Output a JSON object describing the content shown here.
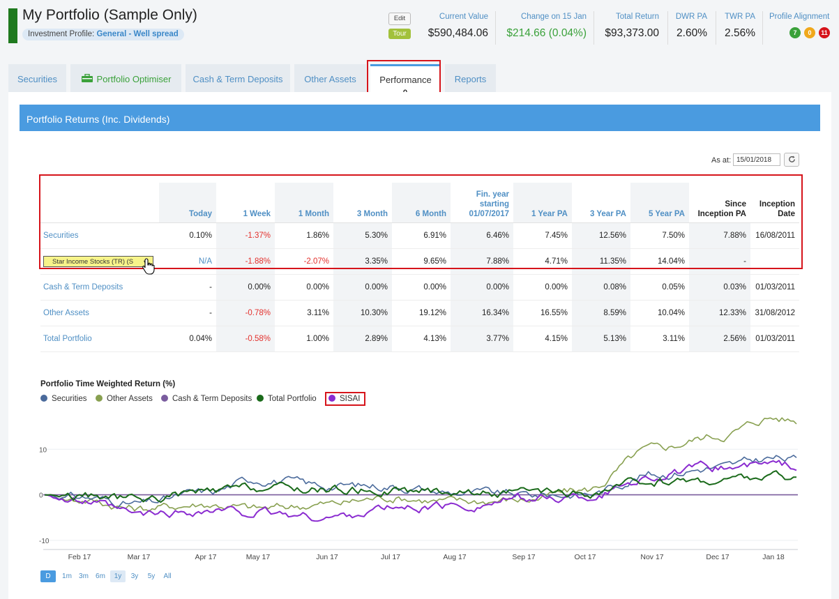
{
  "header": {
    "title": "My Portfolio (Sample Only)",
    "profile_label": "Investment Profile:",
    "profile_value": "General - Well spread",
    "edit_label": "Edit",
    "tour_label": "Tour",
    "kpis": [
      {
        "label": "Current Value",
        "value": "$590,484.06"
      },
      {
        "label": "Change on 15 Jan",
        "value": "$214.66 (0.04%)"
      },
      {
        "label": "Total Return",
        "value": "$93,373.00"
      },
      {
        "label": "DWR PA",
        "value": "2.60%"
      },
      {
        "label": "TWR PA",
        "value": "2.56%"
      }
    ],
    "alignment_label": "Profile Alignment",
    "alignment": [
      {
        "value": "7",
        "color": "#3aa13a"
      },
      {
        "value": "0",
        "color": "#f0a81c"
      },
      {
        "value": "11",
        "color": "#d6141b"
      }
    ]
  },
  "tabs": [
    "Securities",
    "Portfolio Optimiser",
    "Cash & Term Deposits",
    "Other Assets",
    "Performance",
    "Reports"
  ],
  "panel": {
    "title": "Portfolio Returns (Inc. Dividends)",
    "as_at_label": "As at:",
    "as_at_value": "15/01/2018"
  },
  "table": {
    "columns": [
      "",
      "Today",
      "1 Week",
      "1 Month",
      "3 Month",
      "6 Month",
      "Fin. year starting 01/07/2017",
      "1 Year PA",
      "3 Year PA",
      "5 Year PA",
      "Since Inception PA",
      "Inception Date"
    ],
    "rows": [
      {
        "name": "Securities",
        "values": [
          "0.10%",
          "-1.37%",
          "1.86%",
          "5.30%",
          "6.91%",
          "6.46%",
          "7.45%",
          "12.56%",
          "7.50%",
          "7.88%",
          "16/08/2011"
        ]
      },
      {
        "name": "Star Income Stocks (TR) (S",
        "values": [
          "N/A",
          "-1.88%",
          "-2.07%",
          "3.35%",
          "9.65%",
          "7.88%",
          "4.71%",
          "11.35%",
          "14.04%",
          "-",
          ""
        ]
      },
      {
        "name": "Cash & Term Deposits",
        "values": [
          "-",
          "0.00%",
          "0.00%",
          "0.00%",
          "0.00%",
          "0.00%",
          "0.00%",
          "0.08%",
          "0.05%",
          "0.03%",
          "01/03/2011"
        ]
      },
      {
        "name": "Other Assets",
        "values": [
          "-",
          "-0.78%",
          "3.11%",
          "10.30%",
          "19.12%",
          "16.34%",
          "16.55%",
          "8.59%",
          "10.04%",
          "12.33%",
          "31/08/2012"
        ]
      },
      {
        "name": "Total Portfolio",
        "values": [
          "0.04%",
          "-0.58%",
          "1.00%",
          "2.89%",
          "4.13%",
          "3.77%",
          "4.15%",
          "5.13%",
          "3.11%",
          "2.56%",
          "01/03/2011"
        ]
      }
    ]
  },
  "chart_data": {
    "type": "line",
    "title": "Portfolio Time Weighted Return (%)",
    "x": [
      "Feb 17",
      "Mar 17",
      "Apr 17",
      "May 17",
      "Jun 17",
      "Jul 17",
      "Aug 17",
      "Sep 17",
      "Oct 17",
      "Nov 17",
      "Dec 17",
      "Jan 18"
    ],
    "ylim": [
      -12,
      18
    ],
    "yticks": [
      "10",
      "0",
      "-10"
    ],
    "series": [
      {
        "name": "Securities",
        "color": "#4a6a9b",
        "values": [
          -0.5,
          -2.0,
          0.5,
          3.5,
          2.0,
          2.0,
          0.5,
          0.0,
          0.2,
          4.5,
          6.0,
          8.0
        ]
      },
      {
        "name": "Other Assets",
        "color": "#88a050",
        "values": [
          -1.0,
          -3.0,
          -2.0,
          -3.0,
          -2.0,
          -0.5,
          -1.5,
          -1.0,
          1.0,
          10.0,
          13.0,
          17.0
        ]
      },
      {
        "name": "Cash & Term Deposits",
        "color": "#7a5c9e",
        "values": [
          0,
          0,
          0,
          0,
          0,
          0,
          0,
          0,
          0,
          0,
          0,
          0
        ]
      },
      {
        "name": "Total Portfolio",
        "color": "#1a6a1a",
        "values": [
          -0.3,
          -1.0,
          0.5,
          1.5,
          1.2,
          1.0,
          0.8,
          0.2,
          0.0,
          3.0,
          3.2,
          4.0
        ]
      },
      {
        "name": "SISAI",
        "color": "#8a2bd0",
        "values": [
          -1.5,
          -4.5,
          -3.5,
          -4.0,
          -5.0,
          -3.0,
          -2.5,
          -1.0,
          -0.5,
          4.0,
          6.0,
          6.5
        ]
      }
    ],
    "ranges": [
      "D",
      "1m",
      "3m",
      "6m",
      "1y",
      "3y",
      "5y",
      "All"
    ],
    "selected_range": "1y"
  }
}
